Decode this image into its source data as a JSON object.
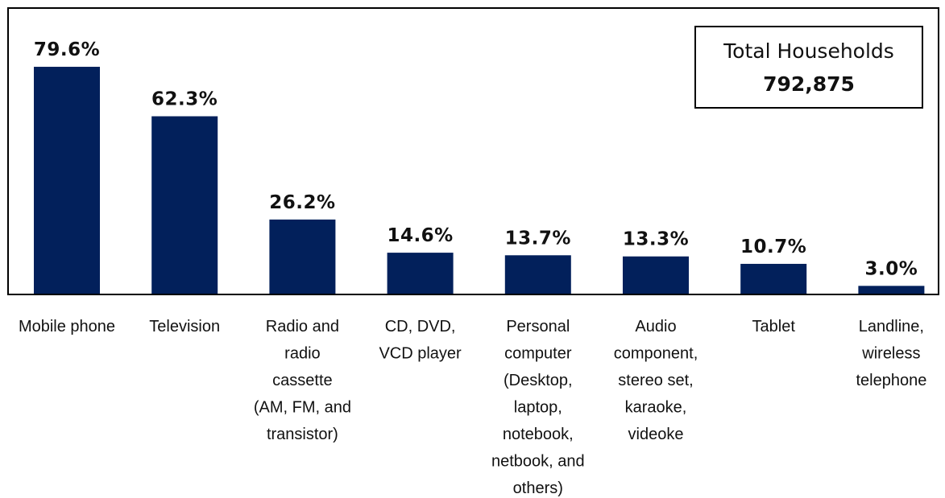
{
  "chart_data": {
    "type": "bar",
    "categories": [
      "Mobile phone",
      "Television",
      "Radio and\nradio\ncassette\n(AM, FM, and\ntransistor)",
      "CD, DVD,\nVCD player",
      "Personal\ncomputer\n(Desktop,\nlaptop,\nnotebook,\nnetbook, and\nothers)",
      "Audio\ncomponent,\nstereo set,\nkaraoke,\nvideoke",
      "Tablet",
      "Landline,\nwireless\ntelephone"
    ],
    "values": [
      79.6,
      62.3,
      26.2,
      14.6,
      13.7,
      13.3,
      10.7,
      3.0
    ],
    "value_labels": [
      "79.6%",
      "62.3%",
      "26.2%",
      "14.6%",
      "13.7%",
      "13.3%",
      "10.7%",
      "3.0%"
    ],
    "color": "#02205b",
    "annotations": [
      "Total Households",
      "792,875"
    ]
  }
}
